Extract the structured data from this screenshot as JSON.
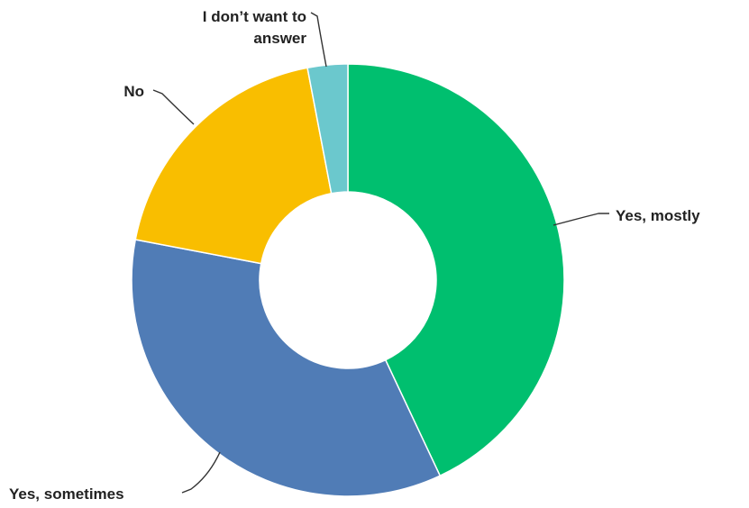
{
  "chart_data": {
    "type": "pie",
    "style": "donut",
    "title": "",
    "categories": [
      "Yes, mostly",
      "Yes, sometimes",
      "No",
      "I don’t want to answer"
    ],
    "values": [
      43,
      35,
      19,
      3
    ],
    "label_lines": [
      [
        "Yes, mostly"
      ],
      [
        "Yes, sometimes"
      ],
      [
        "No"
      ],
      [
        "I don’t want to",
        "answer"
      ]
    ],
    "colors": [
      "#00bf6f",
      "#507cb6",
      "#f9be00",
      "#6bc8cd"
    ],
    "legend": "none",
    "labels": "outside with leader lines"
  }
}
